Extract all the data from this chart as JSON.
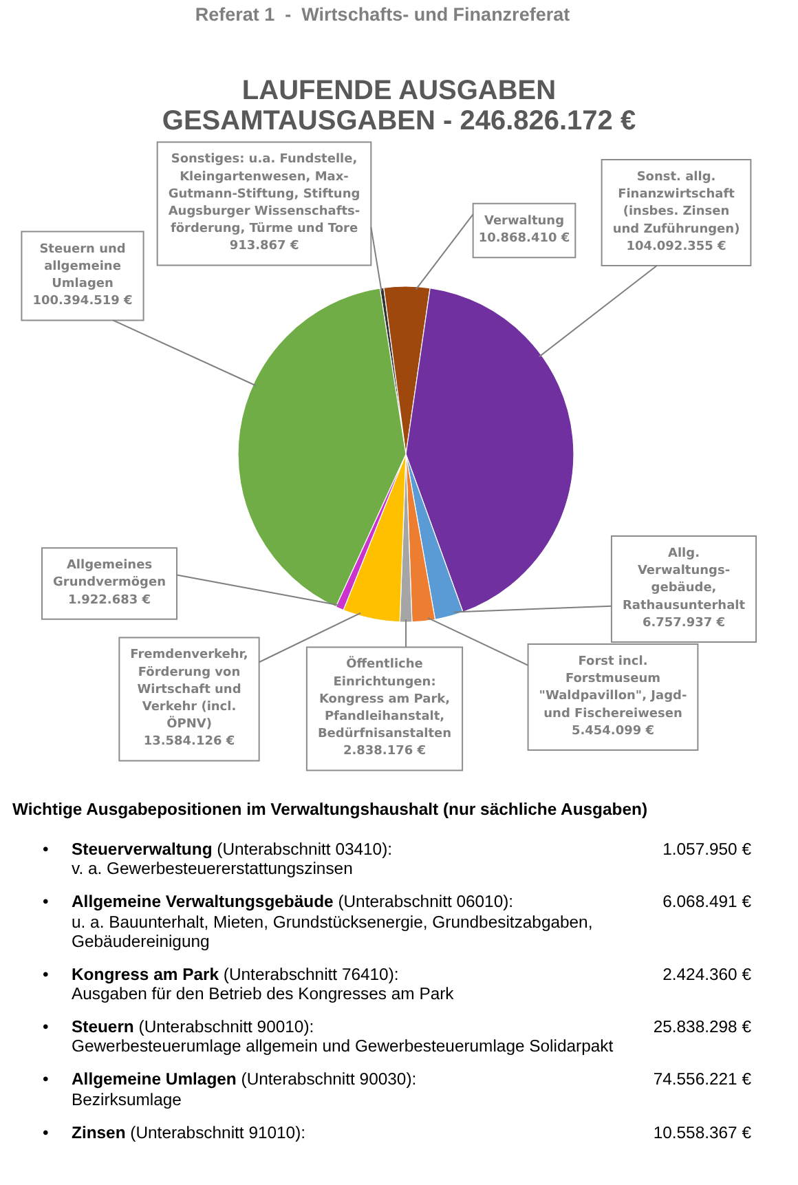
{
  "chart_data": {
    "type": "pie",
    "title": "LAUFENDE AUSGABEN\nGESAMTAUSGABEN - 246.826.172 €",
    "categories": [
      "Sonstiges: u.a. Fundstelle,\nKleingartenwesen, Max-\nGutmann-Stiftung, Stiftung\nAugsburger Wissenschafts-\nförderung, Türme und Tore",
      "Verwaltung",
      "Sonst. allg.\nFinanzwirtschaft\n(insbes. Zinsen\nund Zuführungen)",
      "Allg.\nVerwaltungs-\ngebäude,\nRathausunterhalt",
      "Forst incl.\nForstmuseum\n\"Waldpavillon\", Jagd-\nund Fischereiwesen",
      "Öffentliche\nEinrichtungen:\nKongress am Park,\nPfandleihanstalt,\nBedürfnisanstalten",
      "Fremdenverkehr,\nFörderung von\nWirtschaft und\nVerkehr (incl.\nÖPNV)",
      "Allgemeines\nGrundvermögen",
      "Steuern und\nallgemeine\nUmlagen"
    ],
    "values": [
      913867,
      10868410,
      104092355,
      6757937,
      5454099,
      2838176,
      13584126,
      1922683,
      100394519
    ],
    "value_labels": [
      "913.867 €",
      "10.868.410 €",
      "104.092.355 €",
      "6.757.937 €",
      "5.454.099 €",
      "2.838.176 €",
      "13.584.126 €",
      "1.922.683 €",
      "100.394.519 €"
    ],
    "colors": [
      "#333333",
      "#9e480e",
      "#7030a0",
      "#5b9bd5",
      "#ed7d31",
      "#a5a5a5",
      "#ffc000",
      "#cc33cc",
      "#70ad47"
    ],
    "annotations": [
      "Referat 1  -  Wirtschafts- und Finanzreferat",
      "Wichtige Ausgabepositionen im Verwaltungshaushalt (nur sächliche Ausgaben)",
      "•\tSteuerverwaltung (Unterabschnitt 03410):\t1.057.950 €\nv. a. Gewerbesteuererstattungszinsen",
      "•\tAllgemeine Verwaltungsgebäude (Unterabschnitt 06010):\t6.068.491 €\nu. a. Bauunterhalt, Mieten, Grundstücksenergie, Grundbesitzabgaben,\nGebäudereinigung",
      "•\tKongress am Park (Unterabschnitt 76410):\t2.424.360 €\nAusgaben für den Betrieb des Kongresses am Park",
      "•\tSteuern (Unterabschnitt 90010):\t25.838.298 €\nGewerbesteuerumlage allgemein und Gewerbesteuerumlage Solidarpakt",
      "•\tAllgemeine Umlagen (Unterabschnitt 90030):\t74.556.221 €\nBezirksumlage",
      "•\tZinsen (Unterabschnitt 91010):\t10.558.367 €"
    ]
  }
}
